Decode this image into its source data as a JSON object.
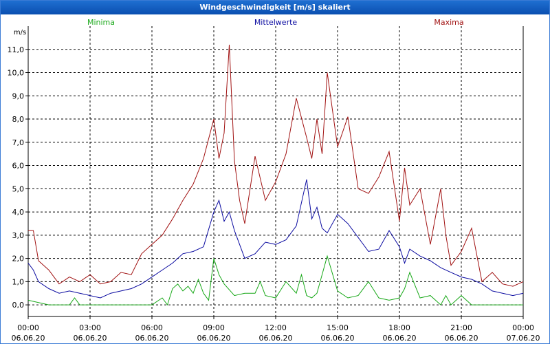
{
  "window": {
    "title": "Windgeschwindigkeit [m/s] skaliert"
  },
  "chart_data": {
    "type": "line",
    "title": "Windgeschwindigkeit [m/s] skaliert",
    "ylabel": "m/s",
    "ylim": [
      -0.5,
      12
    ],
    "xlim": [
      0,
      24
    ],
    "y_ticks": [
      "0,0",
      "1,0",
      "2,0",
      "3,0",
      "4,0",
      "5,0",
      "6,0",
      "7,0",
      "8,0",
      "9,0",
      "10,0",
      "11,0"
    ],
    "x_ticks": [
      {
        "time": "00:00",
        "date": "06.06.20"
      },
      {
        "time": "03:00",
        "date": "06.06.20"
      },
      {
        "time": "06:00",
        "date": "06.06.20"
      },
      {
        "time": "09:00",
        "date": "06.06.20"
      },
      {
        "time": "12:00",
        "date": "06.06.20"
      },
      {
        "time": "15:00",
        "date": "06.06.20"
      },
      {
        "time": "18:00",
        "date": "06.06.20"
      },
      {
        "time": "21:00",
        "date": "06.06.20"
      },
      {
        "time": "00:00",
        "date": "07.06.20"
      }
    ],
    "grid": true,
    "legend_position": "top",
    "series": [
      {
        "name": "Minima",
        "color": "#18a818",
        "x": [
          0,
          0.5,
          1,
          1.5,
          2,
          2.25,
          2.5,
          3,
          3.5,
          4,
          4.5,
          5,
          5.5,
          6,
          6.5,
          6.75,
          7,
          7.25,
          7.5,
          7.75,
          8,
          8.25,
          8.5,
          8.75,
          9,
          9.25,
          9.5,
          10,
          10.5,
          11,
          11.25,
          11.5,
          12,
          12.5,
          13,
          13.25,
          13.5,
          13.75,
          14,
          14.5,
          15,
          15.5,
          16,
          16.5,
          17,
          17.5,
          18,
          18.25,
          18.5,
          19,
          19.5,
          20,
          20.25,
          20.5,
          21,
          21.5,
          22,
          22.5,
          23,
          23.5,
          24
        ],
        "y": [
          0.2,
          0.1,
          0.0,
          0.0,
          0.0,
          0.3,
          0.0,
          0.0,
          0.0,
          0.0,
          0.0,
          0.0,
          0.0,
          0.0,
          0.3,
          0.0,
          0.7,
          0.9,
          0.6,
          0.8,
          0.5,
          1.1,
          0.5,
          0.2,
          2.0,
          1.3,
          0.9,
          0.4,
          0.5,
          0.5,
          1.0,
          0.4,
          0.3,
          1.0,
          0.5,
          1.3,
          0.4,
          0.3,
          0.5,
          2.1,
          0.6,
          0.3,
          0.4,
          1.0,
          0.3,
          0.2,
          0.3,
          0.7,
          1.4,
          0.3,
          0.4,
          0.0,
          0.4,
          0.0,
          0.4,
          0.0,
          0.0,
          0.0,
          0.0,
          0.0,
          0.0
        ]
      },
      {
        "name": "Mittelwerte",
        "color": "#0a0aa0",
        "x": [
          0,
          0.25,
          0.5,
          1,
          1.5,
          2,
          2.5,
          3,
          3.5,
          4,
          4.5,
          5,
          5.5,
          6,
          6.5,
          7,
          7.5,
          8,
          8.5,
          9,
          9.25,
          9.5,
          9.75,
          10,
          10.25,
          10.5,
          11,
          11.5,
          12,
          12.5,
          13,
          13.5,
          13.75,
          14,
          14.25,
          14.5,
          15,
          15.5,
          16,
          16.5,
          17,
          17.5,
          18,
          18.25,
          18.5,
          19,
          19.5,
          20,
          20.5,
          21,
          21.5,
          22,
          22.5,
          23,
          23.5,
          24
        ],
        "y": [
          1.8,
          1.5,
          1.0,
          0.7,
          0.5,
          0.6,
          0.5,
          0.4,
          0.3,
          0.5,
          0.6,
          0.7,
          0.9,
          1.2,
          1.5,
          1.8,
          2.2,
          2.3,
          2.5,
          4.0,
          4.5,
          3.6,
          4.0,
          3.2,
          2.6,
          2.0,
          2.2,
          2.7,
          2.6,
          2.8,
          3.4,
          5.4,
          3.7,
          4.2,
          3.3,
          3.1,
          3.9,
          3.5,
          2.9,
          2.3,
          2.4,
          3.2,
          2.5,
          1.8,
          2.4,
          2.1,
          1.9,
          1.6,
          1.4,
          1.2,
          1.1,
          0.9,
          0.6,
          0.5,
          0.4,
          0.5
        ]
      },
      {
        "name": "Maxima",
        "color": "#a01010",
        "x": [
          0,
          0.25,
          0.5,
          1,
          1.5,
          2,
          2.5,
          3,
          3.5,
          4,
          4.5,
          5,
          5.5,
          6,
          6.5,
          7,
          7.5,
          8,
          8.5,
          9,
          9.25,
          9.5,
          9.75,
          10,
          10.25,
          10.5,
          11,
          11.5,
          12,
          12.5,
          13,
          13.5,
          13.75,
          14,
          14.25,
          14.5,
          15,
          15.5,
          16,
          16.5,
          17,
          17.5,
          18,
          18.25,
          18.5,
          19,
          19.5,
          20,
          20.25,
          20.5,
          21,
          21.5,
          22,
          22.5,
          23,
          23.5,
          24
        ],
        "y": [
          3.2,
          3.2,
          1.9,
          1.5,
          0.9,
          1.2,
          1.0,
          1.3,
          0.9,
          1.0,
          1.4,
          1.3,
          2.2,
          2.6,
          3.0,
          3.7,
          4.5,
          5.2,
          6.3,
          8.0,
          6.3,
          7.4,
          11.2,
          6.2,
          4.5,
          3.5,
          6.4,
          4.5,
          5.3,
          6.5,
          8.9,
          7.2,
          6.3,
          8.0,
          6.5,
          10.0,
          6.8,
          8.1,
          5.0,
          4.8,
          5.5,
          6.6,
          3.6,
          5.9,
          4.3,
          5.0,
          2.6,
          5.0,
          3.0,
          1.7,
          2.3,
          3.3,
          1.0,
          1.4,
          0.9,
          0.8,
          1.0
        ]
      }
    ]
  }
}
